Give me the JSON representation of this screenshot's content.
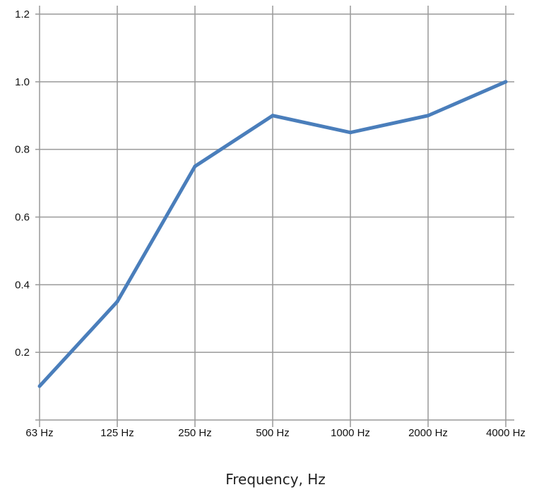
{
  "chart_data": {
    "type": "line",
    "title": "",
    "xlabel": "Frequency, Hz",
    "ylabel": "",
    "categories": [
      "63 Hz",
      "125 Hz",
      "250 Hz",
      "500 Hz",
      "1000 Hz",
      "2000 Hz",
      "4000 Hz"
    ],
    "series": [
      {
        "values": [
          0.1,
          0.35,
          0.75,
          0.9,
          0.85,
          0.9,
          1.0
        ],
        "color": "#4a7ebb"
      }
    ],
    "ylim": [
      0,
      1.2
    ],
    "yticks": [
      "0.2",
      "0.4",
      "0.6",
      "0.8",
      "1.0",
      "1.2"
    ],
    "grid": true,
    "grid_color": "#999999",
    "legend": "none"
  }
}
